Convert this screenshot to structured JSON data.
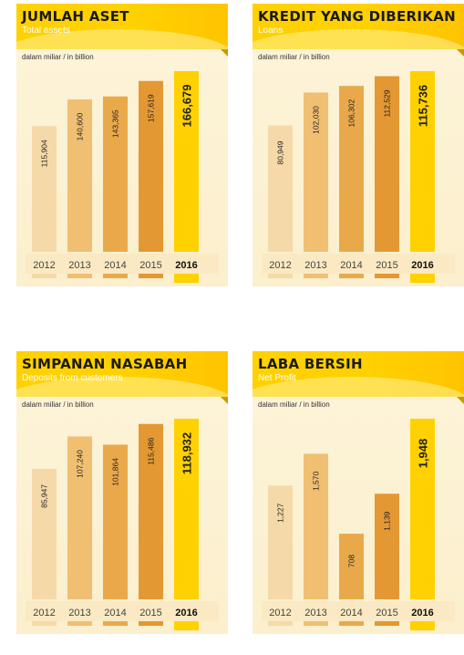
{
  "panels": [
    {
      "title": "JUMLAH ASET",
      "subtitle": "Total assets",
      "unit": "dalam miliar / in billion"
    },
    {
      "title": "KREDIT YANG DIBERIKAN",
      "subtitle": "Loans",
      "unit": "dalam miliar / in billion"
    },
    {
      "title": "SIMPANAN NASABAH",
      "subtitle": "Deposits from customers",
      "unit": "dalam miliar / in billion"
    },
    {
      "title": "LABA BERSIH",
      "subtitle": "Net Profit",
      "unit": "dalam miliar / in billion"
    }
  ],
  "colors": {
    "header": "#ffd100",
    "bars": [
      "#f6d9a8",
      "#f0bf72",
      "#e9a94a",
      "#e39833",
      "#ffd100"
    ],
    "panel_bg": "#fdf3d7"
  },
  "chart_data": [
    {
      "type": "bar",
      "title": "JUMLAH ASET",
      "subtitle": "Total assets",
      "categories": [
        "2012",
        "2013",
        "2014",
        "2015",
        "2016"
      ],
      "values": [
        115904,
        140600,
        143365,
        157619,
        166679
      ],
      "labels": [
        "115,904",
        "140,600",
        "143,365",
        "157,619",
        "166,679"
      ]
    },
    {
      "type": "bar",
      "title": "KREDIT YANG DIBERIKAN",
      "subtitle": "Loans",
      "categories": [
        "2012",
        "2013",
        "2014",
        "2015",
        "2016"
      ],
      "values": [
        80949,
        102030,
        106302,
        112529,
        115736
      ],
      "labels": [
        "80,949",
        "102,030",
        "106,302",
        "112,529",
        "115,736"
      ]
    },
    {
      "type": "bar",
      "title": "SIMPANAN NASABAH",
      "subtitle": "Deposits from customers",
      "categories": [
        "2012",
        "2013",
        "2014",
        "2015",
        "2016"
      ],
      "values": [
        85947,
        107240,
        101864,
        115486,
        118932
      ],
      "labels": [
        "85,947",
        "107,240",
        "101,864",
        "115,486",
        "118,932"
      ]
    },
    {
      "type": "bar",
      "title": "LABA BERSIH",
      "subtitle": "Net Profit",
      "categories": [
        "2012",
        "2013",
        "2014",
        "2015",
        "2016"
      ],
      "values": [
        1227,
        1570,
        708,
        1139,
        1948
      ],
      "labels": [
        "1,227",
        "1,570",
        "708",
        "1,139",
        "1,948"
      ]
    }
  ]
}
